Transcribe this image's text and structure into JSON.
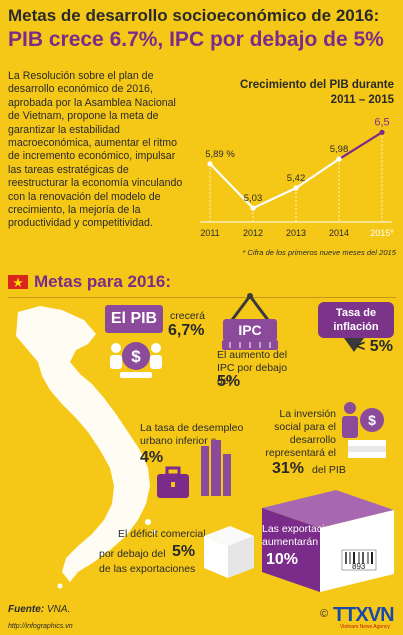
{
  "header": {
    "title": "Metas de desarrollo socioeconómico de 2016:",
    "subtitle": "PIB crece 6.7%, IPC por debajo de  5%"
  },
  "intro": "La Resolución sobre el plan de desarrollo económico de 2016, aprobada por la Asamblea Nacional de Vietnam, propone la meta de garantizar la estabilidad macroeconómica, aumentar el ritmo de incremento económico, impulsar las tareas estratégicas de reestructurar la economía vinculando con la renovación del modelo de crecimiento, la mejoría de la productividad y competitividad.",
  "chart_data": {
    "type": "line",
    "title": "Crecimiento del PIB durante 2011 – 2015",
    "categories": [
      "2011",
      "2012",
      "2013",
      "2014",
      "2015*"
    ],
    "values": [
      5.89,
      5.03,
      5.42,
      5.98,
      6.5
    ],
    "value_labels": [
      "5,89 %",
      "5,03",
      "5,42",
      "5,98",
      "6,5"
    ],
    "note": "* Cifra de los primeros nueve meses del 2015",
    "ylim": [
      4.8,
      6.7
    ],
    "line_color": "#ffffff",
    "highlight_color": "#7b2c8a"
  },
  "metas": {
    "title": "Metas para 2016:",
    "pib_badge": "El PIB",
    "pib_prefix": "crecerá",
    "pib_value": "6,7%",
    "ipc_badge": "IPC",
    "ipc_text": "El aumento del IPC por debajo del",
    "ipc_value": "5%",
    "inflation_label": "Tasa de inflación",
    "inflation_value": "< 5%",
    "desempleo_text": "La tasa de desempleo urbano inferior a",
    "desempleo_value": "4%",
    "inversion_text": "La inversión social para el desarrollo representará el",
    "inversion_value": "31%",
    "inversion_suffix": "del PIB",
    "deficit_line1": "El déficit comercial",
    "deficit_line2_prefix": "por debajo del",
    "deficit_value": "5%",
    "deficit_line3": "de las exportaciones",
    "export_text": "Las exportaciones aumentarán",
    "export_value": "10%",
    "barcode_number": "893"
  },
  "footer": {
    "source_label": "Fuente:",
    "source": "VNA.",
    "url": "http://infographics.vn",
    "brand": "TTXVN",
    "brand_sub": "Vietnam News Agency"
  },
  "colors": {
    "background": "#f5c817",
    "accent": "#7b2c8a",
    "map": "#ffffff"
  }
}
